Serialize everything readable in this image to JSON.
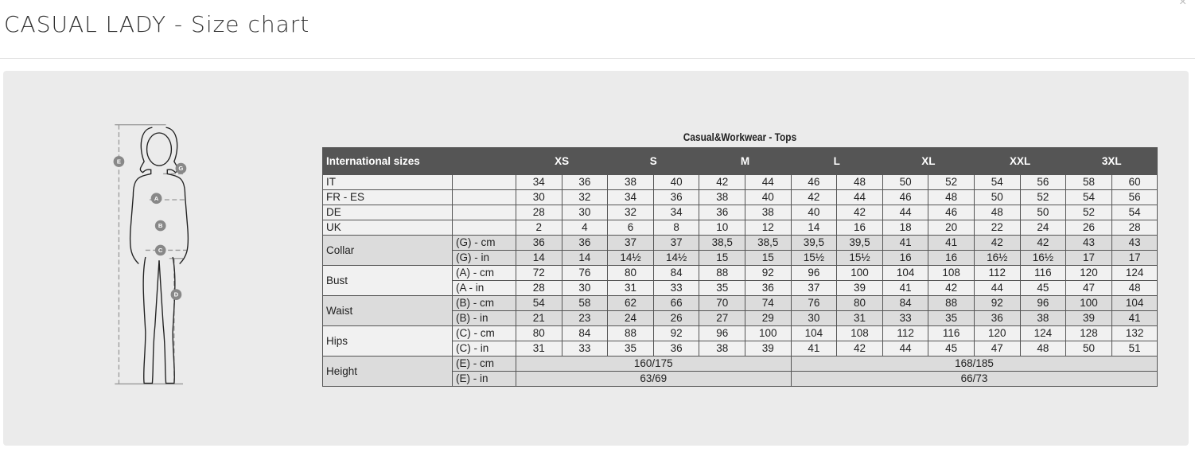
{
  "header": {
    "title": "CASUAL LADY - Size chart",
    "close_label": "×"
  },
  "figure": {
    "markers": [
      "E",
      "G",
      "A",
      "B",
      "C",
      "D"
    ]
  },
  "table": {
    "caption": "Casual&Workwear - Tops",
    "header_label": "International sizes",
    "sizes": [
      "XS",
      "S",
      "M",
      "L",
      "XL",
      "XXL",
      "3XL"
    ],
    "groups": [
      {
        "label": "IT",
        "rows": [
          {
            "unit": "",
            "values": [
              "34",
              "36",
              "38",
              "40",
              "42",
              "44",
              "46",
              "48",
              "50",
              "52",
              "54",
              "56",
              "58",
              "60"
            ]
          }
        ]
      },
      {
        "label": "FR - ES",
        "rows": [
          {
            "unit": "",
            "values": [
              "30",
              "32",
              "34",
              "36",
              "38",
              "40",
              "42",
              "44",
              "46",
              "48",
              "50",
              "52",
              "54",
              "56"
            ]
          }
        ]
      },
      {
        "label": "DE",
        "rows": [
          {
            "unit": "",
            "values": [
              "28",
              "30",
              "32",
              "34",
              "36",
              "38",
              "40",
              "42",
              "44",
              "46",
              "48",
              "50",
              "52",
              "54"
            ]
          }
        ]
      },
      {
        "label": "UK",
        "rows": [
          {
            "unit": "",
            "values": [
              "2",
              "4",
              "6",
              "8",
              "10",
              "12",
              "14",
              "16",
              "18",
              "20",
              "22",
              "24",
              "26",
              "28"
            ]
          }
        ]
      },
      {
        "label": "Collar",
        "shade": "dark",
        "rows": [
          {
            "unit": "(G) - cm",
            "values": [
              "36",
              "36",
              "37",
              "37",
              "38,5",
              "38,5",
              "39,5",
              "39,5",
              "41",
              "41",
              "42",
              "42",
              "43",
              "43"
            ]
          },
          {
            "unit": "(G) - in",
            "values": [
              "14",
              "14",
              "14½",
              "14½",
              "15",
              "15",
              "15½",
              "15½",
              "16",
              "16",
              "16½",
              "16½",
              "17",
              "17"
            ]
          }
        ]
      },
      {
        "label": "Bust",
        "rows": [
          {
            "unit": "(A) - cm",
            "values": [
              "72",
              "76",
              "80",
              "84",
              "88",
              "92",
              "96",
              "100",
              "104",
              "108",
              "112",
              "116",
              "120",
              "124"
            ]
          },
          {
            "unit": "(A - in",
            "values": [
              "28",
              "30",
              "31",
              "33",
              "35",
              "36",
              "37",
              "39",
              "41",
              "42",
              "44",
              "45",
              "47",
              "48"
            ]
          }
        ]
      },
      {
        "label": "Waist",
        "shade": "dark",
        "rows": [
          {
            "unit": "(B) - cm",
            "values": [
              "54",
              "58",
              "62",
              "66",
              "70",
              "74",
              "76",
              "80",
              "84",
              "88",
              "92",
              "96",
              "100",
              "104"
            ]
          },
          {
            "unit": "(B) - in",
            "values": [
              "21",
              "23",
              "24",
              "26",
              "27",
              "29",
              "30",
              "31",
              "33",
              "35",
              "36",
              "38",
              "39",
              "41"
            ]
          }
        ]
      },
      {
        "label": "Hips",
        "rows": [
          {
            "unit": "(C) - cm",
            "values": [
              "80",
              "84",
              "88",
              "92",
              "96",
              "100",
              "104",
              "108",
              "112",
              "116",
              "120",
              "124",
              "128",
              "132"
            ]
          },
          {
            "unit": "(C) - in",
            "values": [
              "31",
              "33",
              "35",
              "36",
              "38",
              "39",
              "41",
              "42",
              "44",
              "45",
              "47",
              "48",
              "50",
              "51"
            ]
          }
        ]
      },
      {
        "label": "Height",
        "shade": "dark",
        "rows": [
          {
            "unit": "(E) - cm",
            "merged": [
              "160/175",
              "168/185"
            ]
          },
          {
            "unit": "(E) - in",
            "merged": [
              "63/69",
              "66/73"
            ]
          }
        ]
      }
    ]
  }
}
